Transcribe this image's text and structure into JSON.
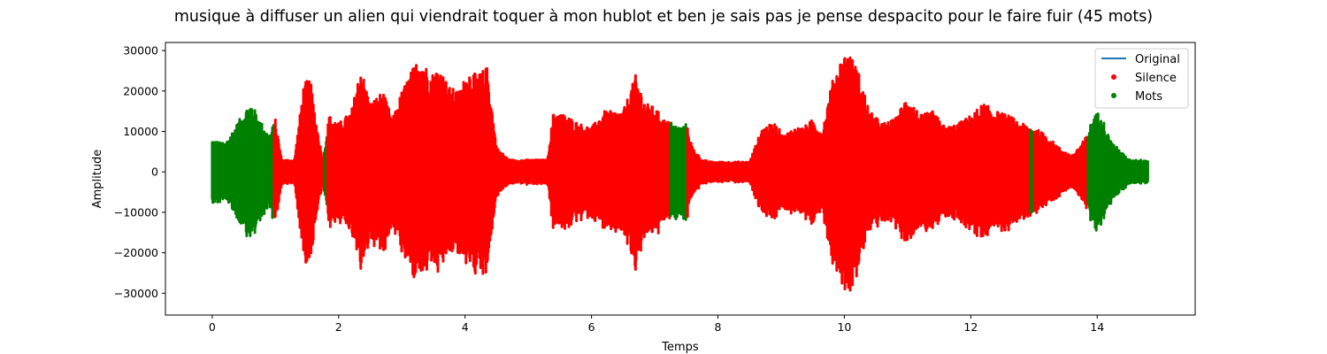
{
  "chart_data": {
    "type": "scatter",
    "title": "musique à diffuser un alien qui viendrait toquer à mon hublot et ben je sais pas je pense despacito pour le faire fuir (45 mots)",
    "xlabel": "Temps",
    "ylabel": "Amplitude",
    "xlim": [
      -0.74,
      15.55
    ],
    "ylim": [
      -35400,
      32000
    ],
    "xticks": [
      0,
      2,
      4,
      6,
      8,
      10,
      12,
      14
    ],
    "yticks": [
      -30000,
      -20000,
      -10000,
      0,
      10000,
      20000,
      30000
    ],
    "ytick_labels": [
      "−30000",
      "−20000",
      "−10000",
      "0",
      "10000",
      "20000",
      "30000"
    ],
    "grid": false,
    "legend_position": "top-right",
    "series": [
      {
        "name": "Original",
        "kind": "line",
        "color": "#1f77b4"
      },
      {
        "name": "Silence",
        "kind": "scatter",
        "color": "#ff0000"
      },
      {
        "name": "Mots",
        "kind": "scatter",
        "color": "#008000"
      }
    ],
    "envelope": {
      "t": [
        0.0,
        0.2,
        0.55,
        0.62,
        0.75,
        0.9,
        1.0,
        1.1,
        1.3,
        1.45,
        1.55,
        1.65,
        1.75,
        1.85,
        2.0,
        2.2,
        2.35,
        2.5,
        2.7,
        2.85,
        3.0,
        3.15,
        3.3,
        3.45,
        3.6,
        3.75,
        3.9,
        4.05,
        4.2,
        4.35,
        4.5,
        4.7,
        5.0,
        5.3,
        5.4,
        5.6,
        5.8,
        6.0,
        6.2,
        6.5,
        6.7,
        6.85,
        7.0,
        7.15,
        7.3,
        7.4,
        7.5,
        7.6,
        7.75,
        7.9,
        8.1,
        8.3,
        8.5,
        8.7,
        8.9,
        9.05,
        9.2,
        9.35,
        9.5,
        9.65,
        9.8,
        9.95,
        10.05,
        10.2,
        10.4,
        10.6,
        10.8,
        11.0,
        11.2,
        11.4,
        11.6,
        11.8,
        12.0,
        12.2,
        12.4,
        12.6,
        12.8,
        13.0,
        13.2,
        13.4,
        13.6,
        13.8,
        13.95,
        14.05,
        14.2,
        14.5,
        14.8
      ],
      "amp": [
        8000,
        7000,
        16000,
        17000,
        13000,
        9000,
        13000,
        3000,
        3000,
        22000,
        23000,
        12000,
        3000,
        14000,
        12000,
        15000,
        26000,
        17000,
        20000,
        13000,
        20000,
        25000,
        29000,
        24000,
        26000,
        21000,
        20000,
        25000,
        24000,
        26000,
        6000,
        3000,
        3000,
        3000,
        15000,
        14000,
        12000,
        11000,
        15000,
        15000,
        24000,
        17000,
        16000,
        13000,
        12000,
        11000,
        12000,
        6000,
        3000,
        2500,
        2500,
        2500,
        2500,
        11000,
        12000,
        9000,
        11000,
        11000,
        13000,
        10000,
        22000,
        28000,
        30000,
        26000,
        15000,
        12000,
        13000,
        19000,
        14000,
        15000,
        11000,
        12000,
        14000,
        17000,
        15000,
        14000,
        12000,
        11000,
        9000,
        6000,
        4000,
        8000,
        14000,
        15000,
        8000,
        3000,
        3000
      ]
    },
    "mots_intervals": [
      [
        0.0,
        0.98
      ],
      [
        1.78,
        1.82
      ],
      [
        7.25,
        7.52
      ],
      [
        12.95,
        13.0
      ],
      [
        13.85,
        14.8
      ]
    ]
  }
}
